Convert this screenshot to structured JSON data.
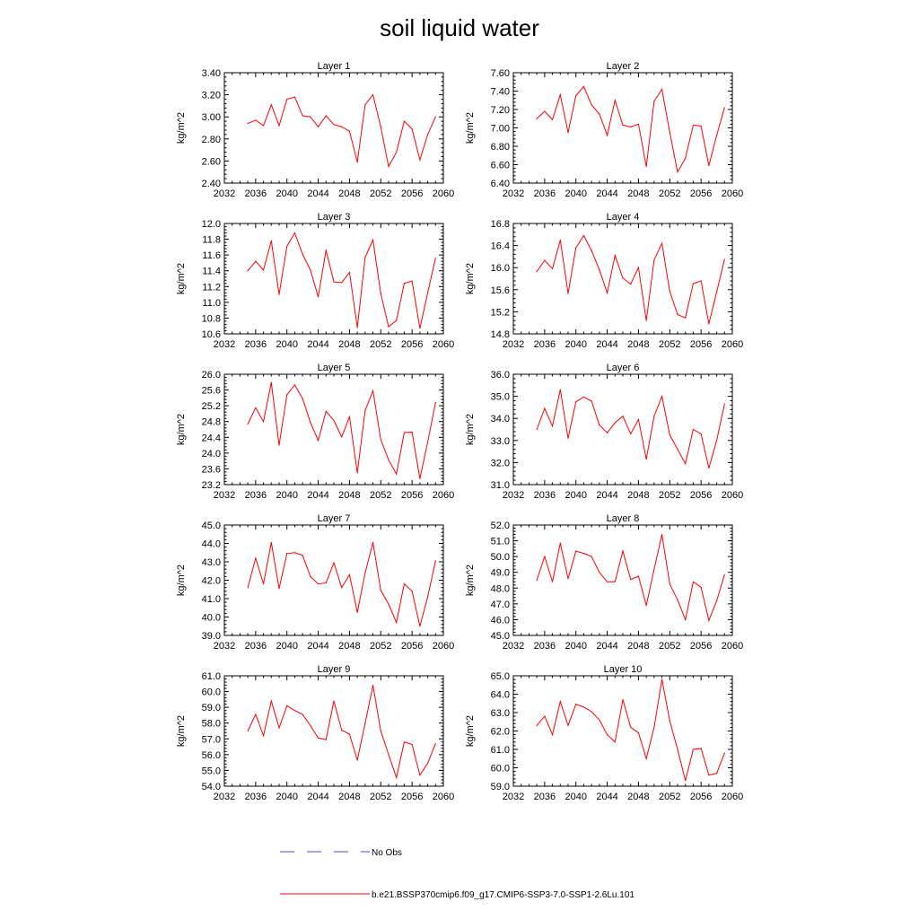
{
  "figure": {
    "title": "soil liquid water",
    "legend": [
      {
        "label": "No Obs",
        "color": "#4a4ad0",
        "style": "dashed"
      },
      {
        "label": "b.e21.BSSP370cmip6.f09_g17.CMIP6-SSP3-7.0-SSP1-2.6Lu.101",
        "color": "#ff0000",
        "style": "solid"
      }
    ]
  },
  "chart_data": [
    {
      "type": "line",
      "title": "Layer 1",
      "xlabel": "",
      "ylabel": "kg/m^2",
      "xlim": [
        2032,
        2060
      ],
      "xticks": [
        "2032",
        "2036",
        "2040",
        "2044",
        "2048",
        "2052",
        "2056",
        "2060"
      ],
      "ylim": [
        2.4,
        3.4
      ],
      "yticks": [
        "2.40",
        "2.60",
        "2.80",
        "3.00",
        "3.20",
        "3.40"
      ],
      "series": [
        {
          "color": "#ff0000",
          "x": [
            2035,
            2036,
            2037,
            2038,
            2039,
            2040,
            2041,
            2042,
            2043,
            2044,
            2045,
            2046,
            2047,
            2048,
            2049,
            2050,
            2051,
            2052,
            2053,
            2054,
            2055,
            2056,
            2057,
            2058,
            2059
          ],
          "values": [
            2.94,
            2.97,
            2.92,
            3.11,
            2.92,
            3.16,
            3.18,
            3.01,
            3.0,
            2.91,
            3.01,
            2.93,
            2.91,
            2.87,
            2.59,
            3.11,
            3.2,
            2.91,
            2.55,
            2.68,
            2.96,
            2.89,
            2.61,
            2.84,
            3.0
          ]
        }
      ]
    },
    {
      "type": "line",
      "title": "Layer 2",
      "xlabel": "",
      "ylabel": "kg/m^2",
      "xlim": [
        2032,
        2060
      ],
      "xticks": [
        "2032",
        "2036",
        "2040",
        "2044",
        "2048",
        "2052",
        "2056",
        "2060"
      ],
      "ylim": [
        6.4,
        7.6
      ],
      "yticks": [
        "6.40",
        "6.60",
        "6.80",
        "7.00",
        "7.20",
        "7.40",
        "7.60"
      ],
      "series": [
        {
          "color": "#ff0000",
          "x": [
            2035,
            2036,
            2037,
            2038,
            2039,
            2040,
            2041,
            2042,
            2043,
            2044,
            2045,
            2046,
            2047,
            2048,
            2049,
            2050,
            2051,
            2052,
            2053,
            2054,
            2055,
            2056,
            2057,
            2058,
            2059
          ],
          "values": [
            7.1,
            7.18,
            7.09,
            7.36,
            6.95,
            7.35,
            7.45,
            7.25,
            7.15,
            6.92,
            7.3,
            7.03,
            7.01,
            7.04,
            6.58,
            7.29,
            7.42,
            6.95,
            6.52,
            6.67,
            7.03,
            7.02,
            6.59,
            6.92,
            7.22
          ]
        }
      ]
    },
    {
      "type": "line",
      "title": "Layer 3",
      "xlabel": "",
      "ylabel": "kg/m^2",
      "xlim": [
        2032,
        2060
      ],
      "xticks": [
        "2032",
        "2036",
        "2040",
        "2044",
        "2048",
        "2052",
        "2056",
        "2060"
      ],
      "ylim": [
        10.6,
        12.0
      ],
      "yticks": [
        "10.6",
        "10.8",
        "11.0",
        "11.2",
        "11.4",
        "11.6",
        "11.8",
        "12.0"
      ],
      "series": [
        {
          "color": "#ff0000",
          "x": [
            2035,
            2036,
            2037,
            2038,
            2039,
            2040,
            2041,
            2042,
            2043,
            2044,
            2045,
            2046,
            2047,
            2048,
            2049,
            2050,
            2051,
            2052,
            2053,
            2054,
            2055,
            2056,
            2057,
            2058,
            2059
          ],
          "values": [
            11.4,
            11.52,
            11.41,
            11.78,
            11.1,
            11.71,
            11.88,
            11.61,
            11.41,
            11.07,
            11.66,
            11.26,
            11.25,
            11.38,
            10.68,
            11.57,
            11.79,
            11.11,
            10.69,
            10.77,
            11.24,
            11.27,
            10.67,
            11.12,
            11.56
          ]
        }
      ]
    },
    {
      "type": "line",
      "title": "Layer 4",
      "xlabel": "",
      "ylabel": "kg/m^2",
      "xlim": [
        2032,
        2060
      ],
      "xticks": [
        "2032",
        "2036",
        "2040",
        "2044",
        "2048",
        "2052",
        "2056",
        "2060"
      ],
      "ylim": [
        14.8,
        16.8
      ],
      "yticks": [
        "14.8",
        "15.2",
        "15.6",
        "16.0",
        "16.4",
        "16.8"
      ],
      "series": [
        {
          "color": "#ff0000",
          "x": [
            2035,
            2036,
            2037,
            2038,
            2039,
            2040,
            2041,
            2042,
            2043,
            2044,
            2045,
            2046,
            2047,
            2048,
            2049,
            2050,
            2051,
            2052,
            2053,
            2054,
            2055,
            2056,
            2057,
            2058,
            2059
          ],
          "values": [
            15.93,
            16.13,
            15.98,
            16.5,
            15.53,
            16.36,
            16.58,
            16.31,
            15.96,
            15.54,
            16.22,
            15.81,
            15.7,
            16.0,
            15.04,
            16.14,
            16.44,
            15.57,
            15.15,
            15.09,
            15.71,
            15.76,
            14.98,
            15.56,
            16.15
          ]
        }
      ]
    },
    {
      "type": "line",
      "title": "Layer 5",
      "xlabel": "",
      "ylabel": "kg/m^2",
      "xlim": [
        2032,
        2060
      ],
      "xticks": [
        "2032",
        "2036",
        "2040",
        "2044",
        "2048",
        "2052",
        "2056",
        "2060"
      ],
      "ylim": [
        23.2,
        26.0
      ],
      "yticks": [
        "23.2",
        "23.6",
        "24.0",
        "24.4",
        "24.8",
        "25.2",
        "25.6",
        "26.0"
      ],
      "series": [
        {
          "color": "#ff0000",
          "x": [
            2035,
            2036,
            2037,
            2038,
            2039,
            2040,
            2041,
            2042,
            2043,
            2044,
            2045,
            2046,
            2047,
            2048,
            2049,
            2050,
            2051,
            2052,
            2053,
            2054,
            2055,
            2056,
            2057,
            2058,
            2059
          ],
          "values": [
            24.74,
            25.15,
            24.8,
            25.79,
            24.2,
            25.48,
            25.73,
            25.38,
            24.78,
            24.32,
            25.06,
            24.83,
            24.41,
            24.92,
            23.5,
            25.08,
            25.58,
            24.34,
            23.83,
            23.47,
            24.52,
            24.53,
            23.35,
            24.28,
            25.28
          ]
        }
      ]
    },
    {
      "type": "line",
      "title": "Layer 6",
      "xlabel": "",
      "ylabel": "kg/m^2",
      "xlim": [
        2032,
        2060
      ],
      "xticks": [
        "2032",
        "2036",
        "2040",
        "2044",
        "2048",
        "2052",
        "2056",
        "2060"
      ],
      "ylim": [
        31.0,
        36.0
      ],
      "yticks": [
        "31.0",
        "32.0",
        "33.0",
        "34.0",
        "35.0",
        "36.0"
      ],
      "series": [
        {
          "color": "#ff0000",
          "x": [
            2035,
            2036,
            2037,
            2038,
            2039,
            2040,
            2041,
            2042,
            2043,
            2044,
            2045,
            2046,
            2047,
            2048,
            2049,
            2050,
            2051,
            2052,
            2053,
            2054,
            2055,
            2056,
            2057,
            2058,
            2059
          ],
          "values": [
            33.5,
            34.45,
            33.65,
            35.3,
            33.1,
            34.75,
            34.97,
            34.78,
            33.7,
            33.35,
            33.8,
            34.1,
            33.3,
            33.95,
            32.15,
            34.1,
            35.0,
            33.25,
            32.6,
            31.95,
            33.5,
            33.3,
            31.75,
            33.0,
            34.65
          ]
        }
      ]
    },
    {
      "type": "line",
      "title": "Layer 7",
      "xlabel": "",
      "ylabel": "kg/m^2",
      "xlim": [
        2032,
        2060
      ],
      "xticks": [
        "2032",
        "2036",
        "2040",
        "2044",
        "2048",
        "2052",
        "2056",
        "2060"
      ],
      "ylim": [
        39.0,
        45.0
      ],
      "yticks": [
        "39.0",
        "40.0",
        "41.0",
        "42.0",
        "43.0",
        "44.0",
        "45.0"
      ],
      "series": [
        {
          "color": "#ff0000",
          "x": [
            2035,
            2036,
            2037,
            2038,
            2039,
            2040,
            2041,
            2042,
            2043,
            2044,
            2045,
            2046,
            2047,
            2048,
            2049,
            2050,
            2051,
            2052,
            2053,
            2054,
            2055,
            2056,
            2057,
            2058,
            2059
          ],
          "values": [
            41.6,
            43.2,
            41.8,
            44.05,
            41.55,
            43.45,
            43.5,
            43.35,
            42.2,
            41.8,
            41.85,
            42.95,
            41.6,
            42.3,
            40.25,
            42.4,
            44.05,
            41.45,
            40.7,
            39.7,
            41.8,
            41.4,
            39.5,
            41.1,
            43.05
          ]
        }
      ]
    },
    {
      "type": "line",
      "title": "Layer 8",
      "xlabel": "",
      "ylabel": "kg/m^2",
      "xlim": [
        2032,
        2060
      ],
      "xticks": [
        "2032",
        "2036",
        "2040",
        "2044",
        "2048",
        "2052",
        "2056",
        "2060"
      ],
      "ylim": [
        45.0,
        52.0
      ],
      "yticks": [
        "45.0",
        "46.0",
        "47.0",
        "48.0",
        "49.0",
        "50.0",
        "51.0",
        "52.0"
      ],
      "series": [
        {
          "color": "#ff0000",
          "x": [
            2035,
            2036,
            2037,
            2038,
            2039,
            2040,
            2041,
            2042,
            2043,
            2044,
            2045,
            2046,
            2047,
            2048,
            2049,
            2050,
            2051,
            2052,
            2053,
            2054,
            2055,
            2056,
            2057,
            2058,
            2059
          ],
          "values": [
            48.5,
            50.0,
            48.4,
            50.85,
            48.6,
            50.35,
            50.2,
            50.0,
            49.0,
            48.4,
            48.4,
            50.35,
            48.55,
            48.75,
            46.9,
            49.2,
            51.4,
            48.25,
            47.25,
            46.0,
            48.4,
            48.05,
            45.95,
            47.2,
            48.85
          ]
        }
      ]
    },
    {
      "type": "line",
      "title": "Layer 9",
      "xlabel": "",
      "ylabel": "kg/m^2",
      "xlim": [
        2032,
        2060
      ],
      "xticks": [
        "2032",
        "2036",
        "2040",
        "2044",
        "2048",
        "2052",
        "2056",
        "2060"
      ],
      "ylim": [
        54.0,
        61.0
      ],
      "yticks": [
        "54.0",
        "55.0",
        "56.0",
        "57.0",
        "58.0",
        "59.0",
        "60.0",
        "61.0"
      ],
      "series": [
        {
          "color": "#ff0000",
          "x": [
            2035,
            2036,
            2037,
            2038,
            2039,
            2040,
            2041,
            2042,
            2043,
            2044,
            2045,
            2046,
            2047,
            2048,
            2049,
            2050,
            2051,
            2052,
            2053,
            2054,
            2055,
            2056,
            2057,
            2058,
            2059
          ],
          "values": [
            57.5,
            58.55,
            57.2,
            59.4,
            57.7,
            59.1,
            58.8,
            58.55,
            57.85,
            57.05,
            56.95,
            59.4,
            57.55,
            57.3,
            55.65,
            58.0,
            60.4,
            57.5,
            56.0,
            54.55,
            56.8,
            56.65,
            54.7,
            55.45,
            56.7
          ]
        }
      ]
    },
    {
      "type": "line",
      "title": "Layer 10",
      "xlabel": "",
      "ylabel": "kg/m^2",
      "xlim": [
        2032,
        2060
      ],
      "xticks": [
        "2032",
        "2036",
        "2040",
        "2044",
        "2048",
        "2052",
        "2056",
        "2060"
      ],
      "ylim": [
        59.0,
        65.0
      ],
      "yticks": [
        "59.0",
        "60.0",
        "61.0",
        "62.0",
        "63.0",
        "64.0",
        "65.0"
      ],
      "series": [
        {
          "color": "#ff0000",
          "x": [
            2035,
            2036,
            2037,
            2038,
            2039,
            2040,
            2041,
            2042,
            2043,
            2044,
            2045,
            2046,
            2047,
            2048,
            2049,
            2050,
            2051,
            2052,
            2053,
            2054,
            2055,
            2056,
            2057,
            2058,
            2059
          ],
          "values": [
            62.3,
            62.8,
            61.8,
            63.6,
            62.3,
            63.45,
            63.3,
            63.05,
            62.6,
            61.8,
            61.4,
            63.7,
            62.2,
            61.9,
            60.5,
            62.2,
            64.8,
            62.55,
            61.0,
            59.3,
            61.0,
            61.05,
            59.6,
            59.7,
            60.8
          ]
        }
      ]
    }
  ]
}
